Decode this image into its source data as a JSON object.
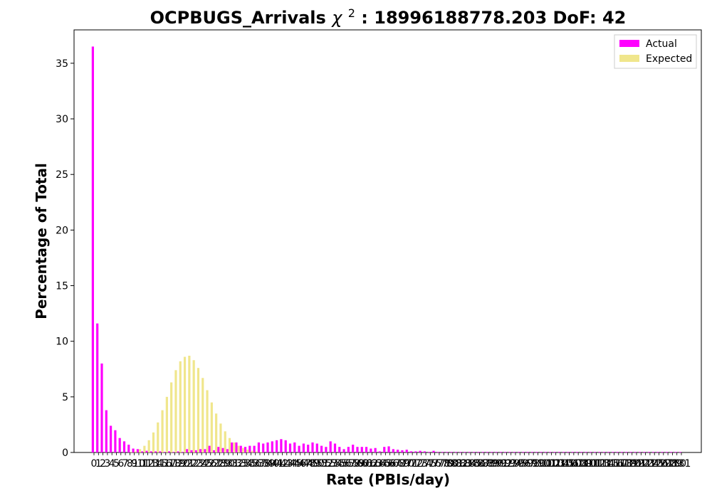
{
  "chart_data": {
    "type": "bar",
    "title": {
      "main": "OCPBUGS_Arrivals ",
      "chi_symbol": "χ",
      "chi_power": "2",
      "rest": ": 18996188778.203 DoF: 42"
    },
    "xlabel": "Rate (PBIs/day)",
    "ylabel": "Percentage of Total",
    "ylim": [
      0,
      38
    ],
    "yticks": [
      0,
      5,
      10,
      15,
      20,
      25,
      30,
      35
    ],
    "xticks": [
      "0",
      "1",
      "2",
      "3",
      "4",
      "5",
      "6",
      "7",
      "8",
      "9",
      "10",
      "11",
      "12",
      "13",
      "14",
      "15",
      "16",
      "17",
      "18",
      "19",
      "20",
      "21",
      "22",
      "23",
      "24",
      "25",
      "26",
      "27",
      "28",
      "29",
      "30",
      "31",
      "32",
      "33",
      "34",
      "35",
      "36",
      "37",
      "38",
      "39",
      "40",
      "41",
      "42",
      "43",
      "44",
      "45",
      "46",
      "47",
      "48",
      "49",
      "50",
      "51",
      "52",
      "53",
      "54",
      "55",
      "56",
      "57",
      "58",
      "59",
      "60",
      "61",
      "62",
      "63",
      "64",
      "65",
      "66",
      "67",
      "68",
      "69",
      "70",
      "71",
      "72",
      "73",
      "74",
      "75",
      "76",
      "77",
      "78",
      "79",
      "80",
      "81",
      "82",
      "83",
      "84",
      "85",
      "86",
      "87",
      "88",
      "89",
      "90",
      "91",
      "92",
      "93",
      "94",
      "95",
      "96",
      "97",
      "98",
      "99",
      "100",
      "101",
      "102",
      "103",
      "104",
      "105",
      "106",
      "107",
      "108",
      "109",
      "110",
      "111",
      "112",
      "113",
      "114",
      "115",
      "116",
      "117",
      "118",
      "119",
      "120",
      "121",
      "122",
      "123",
      "124",
      "125",
      "126",
      "127",
      "128",
      "129",
      "130",
      "131"
    ],
    "series": [
      {
        "name": "Actual",
        "color": "#ff00ff",
        "values": [
          36.5,
          11.6,
          8.0,
          3.8,
          2.4,
          2.0,
          1.3,
          1.0,
          0.7,
          0.35,
          0.3,
          0.1,
          0.15,
          0.1,
          0.1,
          0.1,
          0.05,
          0.1,
          0.05,
          0.1,
          0.05,
          0.3,
          0.2,
          0.2,
          0.3,
          0.3,
          0.6,
          0.2,
          0.5,
          0.4,
          0.3,
          0.9,
          0.9,
          0.6,
          0.5,
          0.6,
          0.6,
          0.9,
          0.8,
          0.9,
          1.0,
          1.1,
          1.2,
          1.1,
          0.8,
          0.9,
          0.6,
          0.8,
          0.7,
          0.9,
          0.8,
          0.6,
          0.5,
          1.0,
          0.8,
          0.5,
          0.3,
          0.5,
          0.7,
          0.5,
          0.5,
          0.5,
          0.35,
          0.4,
          0.1,
          0.5,
          0.55,
          0.3,
          0.25,
          0.2,
          0.25,
          0.1,
          0.1,
          0.15,
          0.1,
          0.05,
          0.15,
          0.05,
          0.05,
          0.05,
          0.05,
          0.05,
          0.05,
          0.05,
          0.05,
          0.05,
          0.05,
          0.05,
          0.05,
          0.05,
          0.05,
          0.05,
          0.05,
          0.05,
          0.05,
          0.05,
          0.05,
          0.05,
          0.05,
          0.05,
          0.05,
          0.05,
          0.05,
          0.05,
          0.05,
          0.05,
          0.05,
          0.05,
          0.05,
          0.05,
          0.05,
          0.05,
          0.05,
          0.05,
          0.05,
          0.05,
          0.05,
          0.05,
          0.05,
          0.05,
          0.05,
          0.05,
          0.05,
          0.05,
          0.05,
          0.05,
          0.05,
          0.05,
          0.05,
          0.05,
          0.05,
          0.05
        ]
      },
      {
        "name": "Expected",
        "color": "#f0e68c",
        "values": [
          0,
          0,
          0,
          0,
          0,
          0,
          0,
          0,
          0.05,
          0.1,
          0.3,
          0.6,
          1.1,
          1.8,
          2.7,
          3.8,
          5.0,
          6.3,
          7.4,
          8.2,
          8.6,
          8.7,
          8.3,
          7.6,
          6.7,
          5.6,
          4.5,
          3.5,
          2.6,
          1.9,
          1.3,
          0.9,
          0.6,
          0.4,
          0.25,
          0.15,
          0.1,
          0.05,
          0,
          0,
          0,
          0,
          0,
          0,
          0,
          0,
          0,
          0,
          0,
          0,
          0,
          0,
          0,
          0,
          0,
          0,
          0,
          0,
          0,
          0,
          0,
          0,
          0,
          0,
          0,
          0,
          0,
          0,
          0,
          0,
          0,
          0,
          0,
          0,
          0,
          0,
          0,
          0,
          0,
          0,
          0,
          0,
          0,
          0,
          0,
          0,
          0,
          0,
          0,
          0,
          0,
          0,
          0,
          0,
          0,
          0,
          0,
          0,
          0,
          0,
          0,
          0,
          0,
          0,
          0,
          0,
          0,
          0,
          0,
          0,
          0,
          0,
          0,
          0,
          0,
          0,
          0,
          0,
          0,
          0,
          0,
          0,
          0,
          0,
          0,
          0,
          0,
          0,
          0,
          0,
          0,
          0,
          0,
          0,
          0,
          0
        ]
      }
    ],
    "legend_position": "top-right",
    "grid": false
  }
}
